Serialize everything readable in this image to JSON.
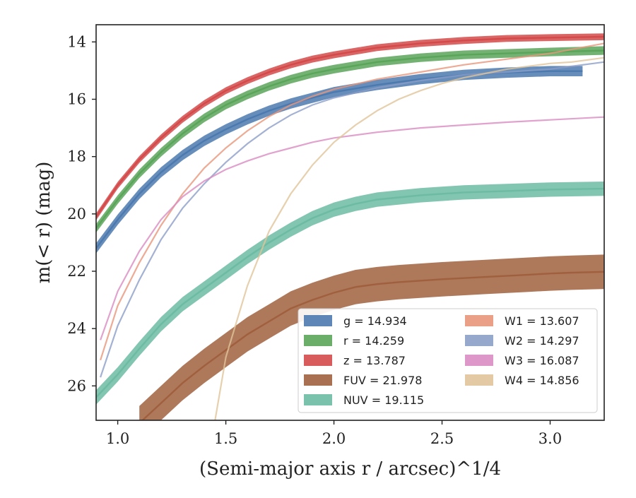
{
  "chart_data": {
    "type": "line",
    "xlabel": "(Semi-major axis r / arcsec)^1/4",
    "ylabel": "m(< r) (mag)",
    "xlim": [
      0.9,
      3.25
    ],
    "ylim": [
      27.2,
      13.4
    ],
    "y_inverted": true,
    "grid": false,
    "legend_position": "lower-right",
    "x_ticks": [
      "1.0",
      "1.5",
      "2.0",
      "2.5",
      "3.0"
    ],
    "y_ticks": [
      "14",
      "16",
      "18",
      "20",
      "22",
      "24",
      "26"
    ],
    "series": [
      {
        "name": "g = 14.934",
        "color": "#4c7aaf",
        "kind": "band",
        "x": [
          0.9,
          1.0,
          1.1,
          1.2,
          1.3,
          1.4,
          1.5,
          1.6,
          1.7,
          1.8,
          1.9,
          2.0,
          2.2,
          2.4,
          2.6,
          2.8,
          3.0,
          3.15
        ],
        "y": [
          21.2,
          20.2,
          19.3,
          18.55,
          17.95,
          17.45,
          17.05,
          16.7,
          16.4,
          16.15,
          15.95,
          15.75,
          15.5,
          15.3,
          15.15,
          15.07,
          15.02,
          15.02
        ],
        "band": 0.18
      },
      {
        "name": "r = 14.259",
        "color": "#5aa55a",
        "kind": "band",
        "x": [
          0.9,
          1.0,
          1.1,
          1.2,
          1.3,
          1.4,
          1.5,
          1.6,
          1.7,
          1.8,
          1.9,
          2.0,
          2.2,
          2.4,
          2.6,
          2.8,
          3.0,
          3.25
        ],
        "y": [
          20.5,
          19.5,
          18.6,
          17.85,
          17.2,
          16.65,
          16.2,
          15.85,
          15.55,
          15.3,
          15.1,
          14.95,
          14.7,
          14.55,
          14.45,
          14.4,
          14.35,
          14.3
        ],
        "band": 0.15
      },
      {
        "name": "z = 13.787",
        "color": "#d44a4a",
        "kind": "band",
        "x": [
          0.9,
          1.0,
          1.1,
          1.2,
          1.3,
          1.4,
          1.5,
          1.6,
          1.7,
          1.8,
          1.9,
          2.0,
          2.2,
          2.4,
          2.6,
          2.8,
          3.0,
          3.25
        ],
        "y": [
          20.1,
          19.0,
          18.1,
          17.35,
          16.7,
          16.15,
          15.7,
          15.35,
          15.05,
          14.8,
          14.6,
          14.45,
          14.2,
          14.05,
          13.95,
          13.88,
          13.85,
          13.82
        ],
        "band": 0.12
      },
      {
        "name": "FUV = 21.978",
        "color": "#a0603e",
        "kind": "band",
        "x": [
          1.1,
          1.2,
          1.3,
          1.4,
          1.5,
          1.6,
          1.7,
          1.8,
          1.9,
          2.0,
          2.1,
          2.2,
          2.3,
          2.5,
          2.7,
          2.9,
          3.0,
          3.1,
          3.25
        ],
        "y": [
          27.3,
          26.6,
          25.9,
          25.3,
          24.75,
          24.2,
          23.75,
          23.3,
          23.0,
          22.75,
          22.55,
          22.45,
          22.38,
          22.28,
          22.2,
          22.12,
          22.08,
          22.05,
          22.02
        ],
        "band": 0.6
      },
      {
        "name": "NUV = 19.115",
        "color": "#6cbba2",
        "kind": "band",
        "x": [
          0.9,
          1.0,
          1.1,
          1.2,
          1.3,
          1.4,
          1.5,
          1.6,
          1.7,
          1.8,
          1.9,
          2.0,
          2.1,
          2.2,
          2.4,
          2.6,
          2.8,
          3.0,
          3.25
        ],
        "y": [
          26.4,
          25.6,
          24.7,
          23.85,
          23.15,
          22.6,
          22.05,
          21.5,
          21.0,
          20.55,
          20.15,
          19.85,
          19.65,
          19.5,
          19.35,
          19.25,
          19.2,
          19.15,
          19.12
        ],
        "band": 0.25
      },
      {
        "name": "W1 = 13.607",
        "color": "#e8967a",
        "kind": "line",
        "x": [
          0.92,
          1.0,
          1.1,
          1.2,
          1.3,
          1.4,
          1.5,
          1.6,
          1.7,
          1.8,
          1.9,
          2.0,
          2.2,
          2.4,
          2.6,
          2.8,
          3.0,
          3.25
        ],
        "y": [
          25.1,
          23.2,
          21.7,
          20.4,
          19.3,
          18.4,
          17.7,
          17.1,
          16.6,
          16.2,
          15.9,
          15.65,
          15.3,
          15.05,
          14.8,
          14.6,
          14.4,
          14.05
        ]
      },
      {
        "name": "W2 = 14.297",
        "color": "#8c9ec8",
        "kind": "line",
        "x": [
          0.92,
          1.0,
          1.1,
          1.2,
          1.3,
          1.4,
          1.5,
          1.6,
          1.7,
          1.8,
          1.9,
          2.0,
          2.2,
          2.4,
          2.6,
          2.8,
          3.0,
          3.25
        ],
        "y": [
          25.7,
          23.9,
          22.3,
          20.9,
          19.8,
          18.95,
          18.2,
          17.55,
          17.0,
          16.55,
          16.2,
          15.95,
          15.6,
          15.35,
          15.15,
          15.05,
          14.95,
          14.7
        ]
      },
      {
        "name": "W3 = 16.087",
        "color": "#d98cc2",
        "kind": "line",
        "x": [
          0.92,
          1.0,
          1.1,
          1.2,
          1.3,
          1.4,
          1.5,
          1.6,
          1.7,
          1.8,
          1.9,
          2.0,
          2.2,
          2.4,
          2.6,
          2.8,
          3.0,
          3.25
        ],
        "y": [
          24.4,
          22.7,
          21.3,
          20.2,
          19.4,
          18.85,
          18.45,
          18.15,
          17.9,
          17.7,
          17.5,
          17.35,
          17.15,
          17.0,
          16.9,
          16.8,
          16.72,
          16.62
        ]
      },
      {
        "name": "W4 = 14.856",
        "color": "#e0c49a",
        "kind": "line",
        "x": [
          1.45,
          1.5,
          1.6,
          1.7,
          1.8,
          1.9,
          2.0,
          2.1,
          2.2,
          2.3,
          2.4,
          2.5,
          2.6,
          2.7,
          2.8,
          2.9,
          3.0,
          3.1,
          3.25
        ],
        "y": [
          27.2,
          25.0,
          22.5,
          20.6,
          19.3,
          18.3,
          17.5,
          16.9,
          16.4,
          16.0,
          15.7,
          15.45,
          15.25,
          15.1,
          14.95,
          14.85,
          14.75,
          14.7,
          14.55
        ]
      }
    ]
  }
}
